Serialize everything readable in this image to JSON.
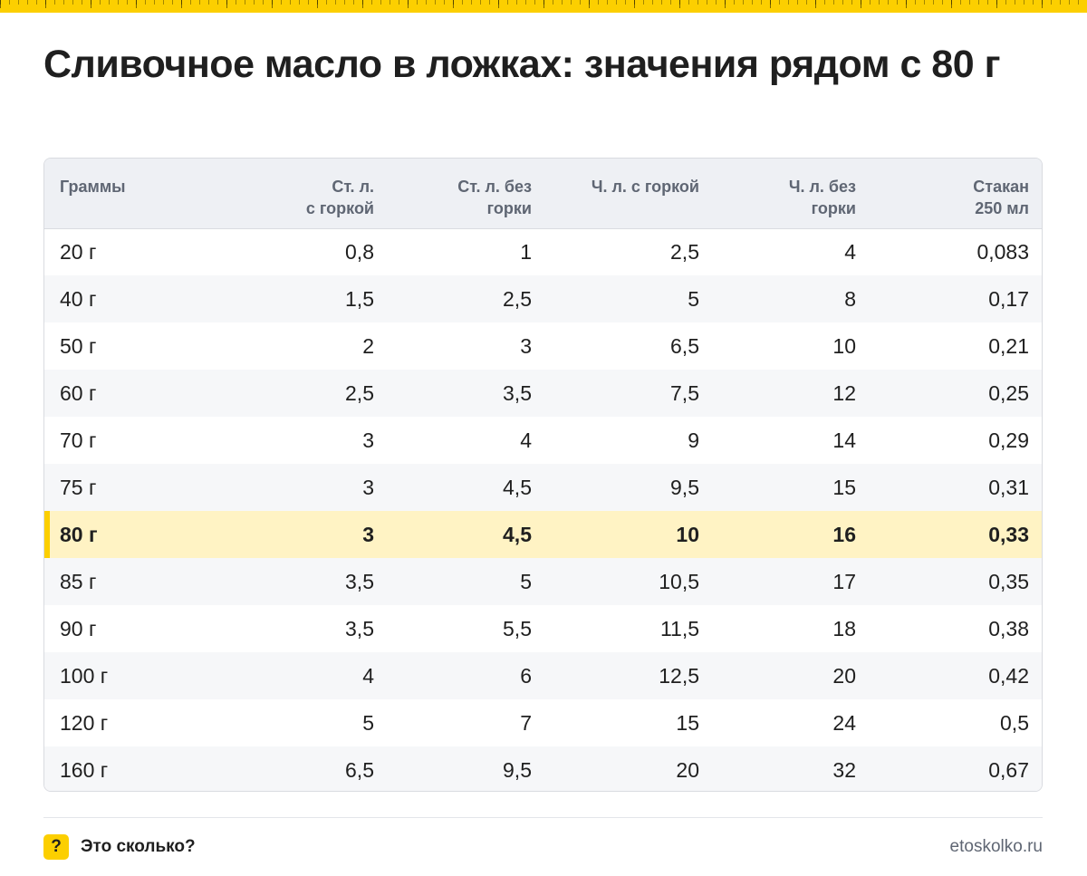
{
  "title": "Сливочное масло в ложках: значения рядом с 80 г",
  "table": {
    "headers": [
      "Граммы",
      "Ст. л.\nс горкой",
      "Ст. л. без\nгорки",
      "Ч. л. с горкой",
      "Ч. л. без\nгорки",
      "Стакан\n250 мл"
    ],
    "rows": [
      [
        "20 г",
        "0,8",
        "1",
        "2,5",
        "4",
        "0,083"
      ],
      [
        "40 г",
        "1,5",
        "2,5",
        "5",
        "8",
        "0,17"
      ],
      [
        "50 г",
        "2",
        "3",
        "6,5",
        "10",
        "0,21"
      ],
      [
        "60 г",
        "2,5",
        "3,5",
        "7,5",
        "12",
        "0,25"
      ],
      [
        "70 г",
        "3",
        "4",
        "9",
        "14",
        "0,29"
      ],
      [
        "75 г",
        "3",
        "4,5",
        "9,5",
        "15",
        "0,31"
      ],
      [
        "80 г",
        "3",
        "4,5",
        "10",
        "16",
        "0,33"
      ],
      [
        "85 г",
        "3,5",
        "5",
        "10,5",
        "17",
        "0,35"
      ],
      [
        "90 г",
        "3,5",
        "5,5",
        "11,5",
        "18",
        "0,38"
      ],
      [
        "100 г",
        "4",
        "6",
        "12,5",
        "20",
        "0,42"
      ],
      [
        "120 г",
        "5",
        "7",
        "15",
        "24",
        "0,5"
      ],
      [
        "160 г",
        "6,5",
        "9,5",
        "20",
        "32",
        "0,67"
      ]
    ],
    "highlight_row": 6
  },
  "footer": {
    "brand_icon": "?",
    "brand_name": "Это сколько?",
    "site": "etoskolko.ru"
  },
  "colors": {
    "accent": "#fccf00",
    "highlight_bg": "#fff3c4",
    "header_bg": "#eef0f4",
    "stripe_bg": "#f6f7f9",
    "text": "#1f1f1f",
    "muted": "#5f6673"
  }
}
